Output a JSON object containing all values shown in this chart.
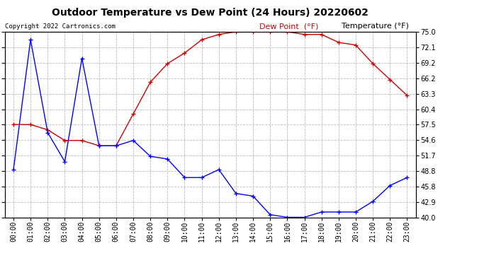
{
  "title": "Outdoor Temperature vs Dew Point (24 Hours) 20220602",
  "copyright": "Copyright 2022 Cartronics.com",
  "legend_dew": "Dew Point  (°F)",
  "legend_temp": "Temperature (°F)",
  "x_labels": [
    "00:00",
    "01:00",
    "02:00",
    "03:00",
    "04:00",
    "05:00",
    "06:00",
    "07:00",
    "08:00",
    "09:00",
    "10:00",
    "11:00",
    "12:00",
    "13:00",
    "14:00",
    "15:00",
    "16:00",
    "17:00",
    "18:00",
    "19:00",
    "20:00",
    "21:00",
    "22:00",
    "23:00"
  ],
  "temperature": [
    49.0,
    73.5,
    56.0,
    50.5,
    70.0,
    53.5,
    53.5,
    54.5,
    51.5,
    51.0,
    47.5,
    47.5,
    49.0,
    44.5,
    44.0,
    40.5,
    40.0,
    40.0,
    41.0,
    41.0,
    41.0,
    43.0,
    46.0,
    47.5
  ],
  "dew_point": [
    57.5,
    57.5,
    56.5,
    54.5,
    54.5,
    53.5,
    53.5,
    59.5,
    65.5,
    69.0,
    71.0,
    73.5,
    74.5,
    75.0,
    75.0,
    75.0,
    75.0,
    74.5,
    74.5,
    73.0,
    72.5,
    69.0,
    66.0,
    63.0
  ],
  "ylim": [
    40.0,
    75.0
  ],
  "yticks": [
    40.0,
    42.9,
    45.8,
    48.8,
    51.7,
    54.6,
    57.5,
    60.4,
    63.3,
    66.2,
    69.2,
    72.1,
    75.0
  ],
  "temp_color": "#0000ff",
  "dew_color": "#cc0000",
  "bg_color": "#ffffff",
  "grid_color": "#bbbbbb",
  "title_fontsize": 10,
  "axis_fontsize": 7,
  "legend_fontsize": 8,
  "copyright_fontsize": 6.5
}
